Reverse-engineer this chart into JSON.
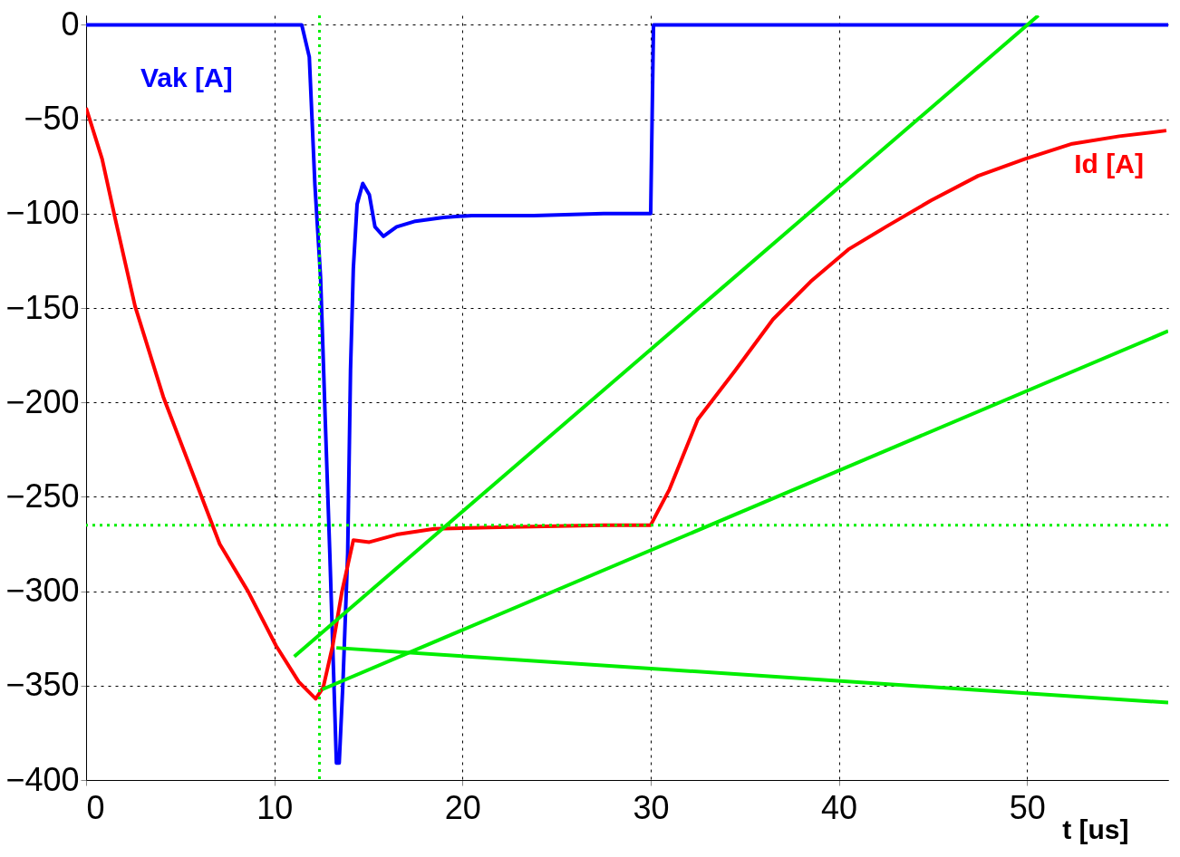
{
  "chart_data": {
    "type": "line",
    "xlabel": "t [us]",
    "xlim": [
      0,
      57.5
    ],
    "ylim": [
      -400,
      5
    ],
    "xticks": [
      0,
      10,
      20,
      30,
      40,
      50
    ],
    "yticks": [
      -400,
      -350,
      -300,
      -250,
      -200,
      -150,
      -100,
      -50,
      0
    ],
    "grid": true,
    "marker": "none",
    "line_style": "solid",
    "series": [
      {
        "name": "Vak [A]",
        "color": "#0000ff",
        "x": [
          0,
          11.46,
          11.86,
          12.16,
          12.46,
          12.7,
          12.95,
          13.15,
          13.3,
          13.45,
          13.65,
          13.9,
          14.05,
          14.2,
          14.4,
          14.7,
          15.05,
          15.35,
          15.8,
          16.5,
          17.5,
          19.0,
          20.5,
          23.8,
          27.5,
          30,
          30.15,
          57.5
        ],
        "values": [
          0,
          0,
          -17,
          -85,
          -134,
          -207,
          -280,
          -343,
          -391,
          -391,
          -348,
          -280,
          -183,
          -129,
          -95,
          -84,
          -90,
          -107,
          -112,
          -107,
          -104,
          -102,
          -101,
          -101,
          -100,
          -100,
          0,
          0
        ]
      },
      {
        "name": "Id [A]",
        "color": "#ff0000",
        "x": [
          0,
          0.85,
          1.6,
          2.6,
          4.1,
          5.6,
          7.1,
          8.6,
          10.1,
          11.3,
          12.2,
          12.6,
          13.1,
          13.6,
          14.2,
          15.05,
          16.5,
          18.5,
          22.5,
          27.5,
          30,
          31,
          32.5,
          34.5,
          36.5,
          38.5,
          40.5,
          42.5,
          44.9,
          47.4,
          49.9,
          52.4,
          54.9,
          57.4
        ],
        "values": [
          -44,
          -71,
          -105,
          -149,
          -197,
          -236,
          -275,
          -300,
          -329,
          -348,
          -357,
          -351,
          -329,
          -300,
          -273,
          -274,
          -270,
          -267,
          -266,
          -265,
          -265,
          -246,
          -209,
          -183,
          -156,
          -136,
          -119,
          -107,
          -93,
          -80,
          -71,
          -63,
          -59,
          -56
        ]
      },
      {
        "color": "#00ee00",
        "x": [
          50.6,
          11.06
        ],
        "values": [
          5,
          -334.6
        ]
      },
      {
        "color": "#00ee00",
        "x": [
          57.5,
          12.55
        ],
        "values": [
          -162.2,
          -352
        ]
      },
      {
        "color": "#00ee00",
        "x": [
          57.5,
          13.3
        ],
        "values": [
          -359,
          -330
        ]
      }
    ],
    "ref_lines": [
      {
        "axis": "x",
        "value": 12.4,
        "color": "#00ee00",
        "line_style": "dotted"
      },
      {
        "axis": "y",
        "value": -265,
        "color": "#00ee00",
        "line_style": "dotted"
      }
    ]
  }
}
